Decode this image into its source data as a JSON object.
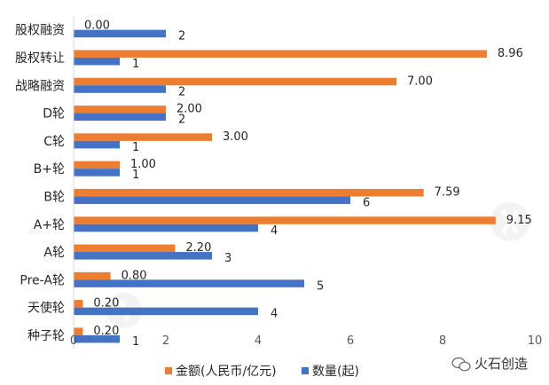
{
  "chart_data": {
    "type": "bar",
    "orientation": "horizontal",
    "categories": [
      "股权融资",
      "股权转让",
      "战略融资",
      "D轮",
      "C轮",
      "B+轮",
      "B轮",
      "A+轮",
      "A轮",
      "Pre-A轮",
      "天使轮",
      "种子轮"
    ],
    "series": [
      {
        "name": "金额(人民币/亿元)",
        "color": "#ED7D31",
        "values": [
          0.0,
          8.96,
          7.0,
          2.0,
          3.0,
          1.0,
          7.59,
          9.15,
          2.2,
          0.8,
          0.2,
          0.2
        ],
        "labels": [
          "0.00",
          "8.96",
          "7.00",
          "2.00",
          "3.00",
          "1.00",
          "7.59",
          "9.15",
          "2.20",
          "0.80",
          "0.20",
          "0.20"
        ]
      },
      {
        "name": "数量(起)",
        "color": "#4472C4",
        "values": [
          2,
          1,
          2,
          2,
          1,
          1,
          6,
          4,
          3,
          5,
          4,
          1
        ],
        "labels": [
          "2",
          "1",
          "2",
          "2",
          "1",
          "1",
          "6",
          "4",
          "3",
          "5",
          "4",
          "1"
        ]
      }
    ],
    "xlim": [
      0,
      10
    ],
    "xticks": [
      0,
      2,
      4,
      6,
      8,
      10
    ],
    "xtick_labels": [
      "0",
      "2",
      "4",
      "6",
      "8",
      "10"
    ],
    "grid": false,
    "legend_position": "bottom"
  },
  "watermark": {
    "brand": "火石创造",
    "icon": "wechat-icon"
  }
}
